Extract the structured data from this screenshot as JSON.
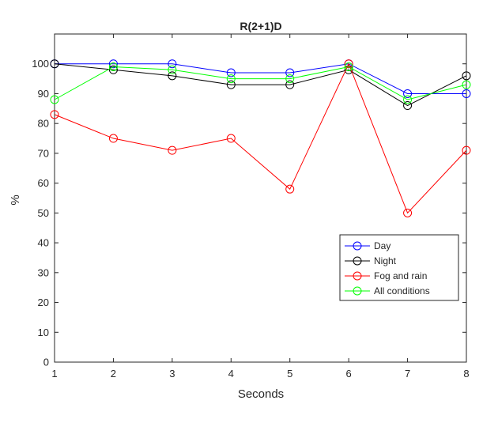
{
  "chart_data": {
    "type": "line",
    "title": "R(2+1)D",
    "xlabel": "Seconds",
    "ylabel": "%",
    "x": [
      1,
      2,
      3,
      4,
      5,
      6,
      7,
      8
    ],
    "xlim": [
      1,
      8
    ],
    "ylim": [
      0,
      110
    ],
    "xticks": [
      "1",
      "2",
      "3",
      "4",
      "5",
      "6",
      "7",
      "8"
    ],
    "yticks": [
      "0",
      "10",
      "20",
      "30",
      "40",
      "50",
      "60",
      "70",
      "80",
      "90",
      "100"
    ],
    "grid": false,
    "legend_position": "lower-right",
    "marker": "circle",
    "series": [
      {
        "name": "Day",
        "color": "#0000ff",
        "values": [
          100,
          100,
          100,
          97,
          97,
          100,
          90,
          90
        ]
      },
      {
        "name": "Night",
        "color": "#000000",
        "values": [
          100,
          98,
          96,
          93,
          93,
          98,
          86,
          96
        ]
      },
      {
        "name": "Fog and rain",
        "color": "#ff0000",
        "values": [
          83,
          75,
          71,
          75,
          58,
          100,
          50,
          71
        ]
      },
      {
        "name": "All conditions",
        "color": "#00ff00",
        "values": [
          88,
          99,
          98,
          95,
          95,
          99,
          88,
          93
        ]
      }
    ]
  }
}
